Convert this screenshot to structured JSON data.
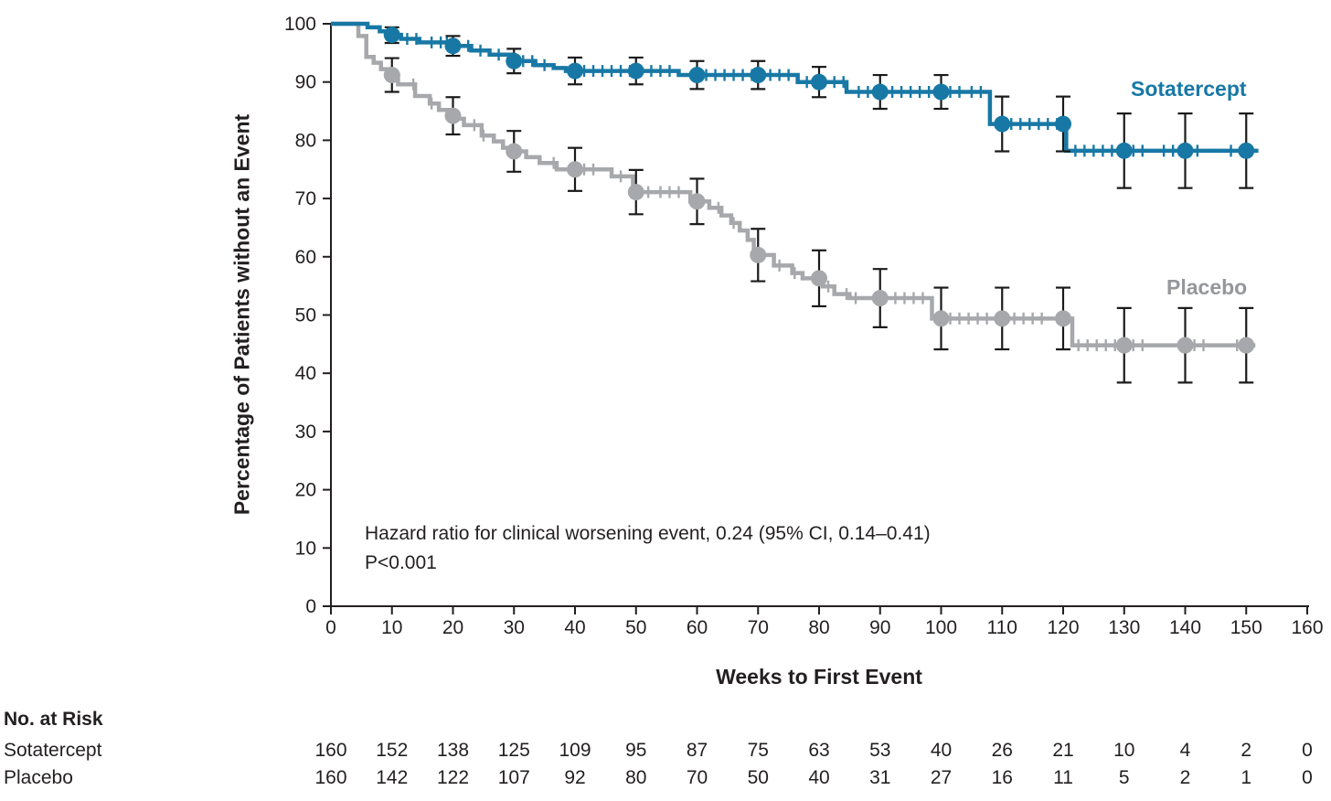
{
  "figure": {
    "background": "#ffffff",
    "text_color": "#231f20",
    "axis_color": "#231f20",
    "error_bar_color": "#1a1a1a"
  },
  "chart_data": {
    "type": "line",
    "subtype": "kaplan_meier_step",
    "title": "",
    "xlabel": "Weeks to First Event",
    "ylabel": "Percentage of Patients without an Event",
    "xlim": [
      0,
      160
    ],
    "ylim": [
      0,
      100
    ],
    "xticks": [
      0,
      10,
      20,
      30,
      40,
      50,
      60,
      70,
      80,
      90,
      100,
      110,
      120,
      130,
      140,
      150,
      160
    ],
    "yticks": [
      0,
      10,
      20,
      30,
      40,
      50,
      60,
      70,
      80,
      90,
      100
    ],
    "grid": false,
    "legend_position": "inline-right",
    "annotations": [
      "Hazard ratio for clinical worsening event, 0.24 (95% CI, 0.14–0.41)",
      "P<0.001"
    ],
    "series": [
      {
        "name": "Sotatercept",
        "color": "#1878a5",
        "label_color": "#1878a5",
        "end_week": 152,
        "steps": [
          [
            0,
            100
          ],
          [
            6,
            99.4
          ],
          [
            8,
            98.7
          ],
          [
            9.5,
            98.1
          ],
          [
            11.5,
            97.4
          ],
          [
            14.5,
            96.8
          ],
          [
            19.5,
            96.2
          ],
          [
            23,
            95.4
          ],
          [
            26,
            94.7
          ],
          [
            29.5,
            93.6
          ],
          [
            33.5,
            92.9
          ],
          [
            36.5,
            92.4
          ],
          [
            38.5,
            91.9
          ],
          [
            57,
            91.2
          ],
          [
            76.5,
            90.0
          ],
          [
            84.5,
            88.3
          ],
          [
            108,
            82.8
          ],
          [
            120.5,
            78.2
          ]
        ],
        "markers": [
          [
            10,
            98.1,
            96.7,
            99.4
          ],
          [
            20,
            96.2,
            94.5,
            97.9
          ],
          [
            30,
            93.6,
            91.5,
            95.7
          ],
          [
            40,
            91.9,
            89.6,
            94.2
          ],
          [
            50,
            91.9,
            89.6,
            94.2
          ],
          [
            60,
            91.2,
            88.8,
            93.6
          ],
          [
            70,
            91.2,
            88.8,
            93.6
          ],
          [
            80,
            90.0,
            87.4,
            92.6
          ],
          [
            90,
            88.3,
            85.4,
            91.2
          ],
          [
            100,
            88.3,
            85.4,
            91.2
          ],
          [
            110,
            82.8,
            78.1,
            87.5
          ],
          [
            120,
            82.8,
            78.1,
            87.5
          ],
          [
            130,
            78.2,
            71.8,
            84.6
          ],
          [
            140,
            78.2,
            71.8,
            84.6
          ],
          [
            150,
            78.2,
            71.8,
            84.6
          ]
        ],
        "censor_weeks": [
          12.5,
          14,
          16.5,
          18,
          19,
          22.5,
          24.5,
          27.5,
          31.5,
          33,
          35,
          41.5,
          43,
          44.5,
          46,
          47.5,
          49,
          52.5,
          54,
          55.5,
          61.5,
          63,
          64.5,
          66,
          67.5,
          69,
          72,
          73.5,
          75,
          78,
          79.5,
          82.5,
          84,
          86.5,
          88,
          92,
          93.5,
          95,
          96.5,
          98,
          101.5,
          103,
          105,
          106.5,
          111.5,
          113,
          114.5,
          116,
          117.5,
          119,
          122,
          123.5,
          125,
          126.5,
          128,
          131.5,
          133,
          136.5,
          138,
          142,
          147.5
        ]
      },
      {
        "name": "Placebo",
        "color": "#a6a8ab",
        "label_color": "#95979a",
        "end_week": 151.5,
        "steps": [
          [
            0,
            100
          ],
          [
            4.5,
            97.9
          ],
          [
            5.8,
            94.3
          ],
          [
            7,
            93.3
          ],
          [
            8.2,
            92.2
          ],
          [
            9.5,
            91.2
          ],
          [
            11,
            89.6
          ],
          [
            13.8,
            87.6
          ],
          [
            16.2,
            86.3
          ],
          [
            17.7,
            85.2
          ],
          [
            19.5,
            84.2
          ],
          [
            20.8,
            83.7
          ],
          [
            21.8,
            82.6
          ],
          [
            24.7,
            80.8
          ],
          [
            26.7,
            79.8
          ],
          [
            28.2,
            78.7
          ],
          [
            29.8,
            78.1
          ],
          [
            32,
            77.1
          ],
          [
            34.2,
            76.1
          ],
          [
            37,
            75.0
          ],
          [
            46,
            73.8
          ],
          [
            49.5,
            71.1
          ],
          [
            58.9,
            69.5
          ],
          [
            62,
            68.4
          ],
          [
            64,
            67.1
          ],
          [
            65.6,
            65.8
          ],
          [
            67,
            64.5
          ],
          [
            68.3,
            62.9
          ],
          [
            69.3,
            60.3
          ],
          [
            72.6,
            58.5
          ],
          [
            75.6,
            57.2
          ],
          [
            77.3,
            56.3
          ],
          [
            80.6,
            54.9
          ],
          [
            82.5,
            53.6
          ],
          [
            85,
            52.9
          ],
          [
            98.5,
            49.4
          ],
          [
            121.5,
            44.8
          ]
        ],
        "markers": [
          [
            10,
            91.2,
            88.3,
            94.1
          ],
          [
            20,
            84.2,
            81.0,
            87.4
          ],
          [
            30,
            78.1,
            74.6,
            81.6
          ],
          [
            40,
            75.0,
            71.3,
            78.7
          ],
          [
            50,
            71.1,
            67.3,
            74.9
          ],
          [
            60,
            69.5,
            65.6,
            73.4
          ],
          [
            70,
            60.3,
            55.8,
            64.8
          ],
          [
            80,
            56.3,
            51.5,
            61.1
          ],
          [
            90,
            52.9,
            47.9,
            57.9
          ],
          [
            100,
            49.4,
            44.1,
            54.7
          ],
          [
            110,
            49.4,
            44.1,
            54.7
          ],
          [
            120,
            49.4,
            44.1,
            54.7
          ],
          [
            130,
            44.8,
            38.4,
            51.2
          ],
          [
            140,
            44.8,
            38.4,
            51.2
          ],
          [
            150,
            44.8,
            38.4,
            51.2
          ]
        ],
        "censor_weeks": [
          13.5,
          16.5,
          23.5,
          25,
          36.5,
          41.5,
          43,
          47.5,
          52,
          54,
          55.5,
          57,
          63.5,
          66,
          73.5,
          76,
          81.5,
          84.5,
          86,
          92.5,
          94,
          95.5,
          97,
          101.5,
          103,
          104.5,
          106,
          107.5,
          112,
          113.5,
          115,
          116.5,
          122.5,
          124,
          125.5,
          127,
          128.5,
          131.5,
          133,
          141.5,
          143,
          148.5
        ]
      }
    ]
  },
  "risk_table": {
    "title": "No. at Risk",
    "weeks": [
      0,
      10,
      20,
      30,
      40,
      50,
      60,
      70,
      80,
      90,
      100,
      110,
      120,
      130,
      140,
      150,
      160
    ],
    "rows": [
      {
        "label": "Sotatercept",
        "values": [
          160,
          152,
          138,
          125,
          109,
          95,
          87,
          75,
          63,
          53,
          40,
          26,
          21,
          10,
          4,
          2,
          0
        ]
      },
      {
        "label": "Placebo",
        "values": [
          160,
          142,
          122,
          107,
          92,
          80,
          70,
          50,
          40,
          31,
          27,
          16,
          11,
          5,
          2,
          1,
          0
        ]
      }
    ]
  }
}
